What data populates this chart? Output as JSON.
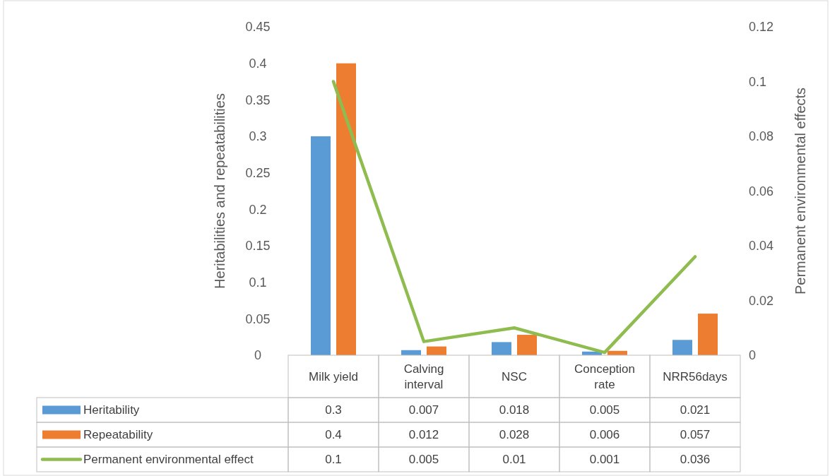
{
  "chart_data": {
    "type": "bar",
    "ylabel": "Heritabilities and repeatabilities",
    "y2label": "Permanent environmental effects",
    "categories": [
      "Milk yield",
      "Calving interval",
      "NSC",
      "Conception rate",
      "NRR56days"
    ],
    "series": [
      {
        "name": "Heritability",
        "color": "#5b9bd5",
        "values": [
          0.3,
          0.007,
          0.018,
          0.005,
          0.021
        ]
      },
      {
        "name": "Repeatability",
        "color": "#ed7d31",
        "values": [
          0.4,
          0.012,
          0.028,
          0.006,
          0.057
        ]
      },
      {
        "name": "Permanent environmental effect",
        "type": "line",
        "axis": "y2",
        "color": "#8fbc4f",
        "values": [
          0.1,
          0.005,
          0.01,
          0.001,
          0.036
        ]
      }
    ],
    "ylim": [
      0,
      0.45
    ],
    "yticks": [
      0,
      0.05,
      0.1,
      0.15,
      0.2,
      0.25,
      0.3,
      0.35,
      0.4,
      0.45
    ],
    "y2lim": [
      0,
      0.12
    ],
    "y2ticks": [
      0,
      0.02,
      0.04,
      0.06,
      0.08,
      0.1,
      0.12
    ],
    "data_labels": true,
    "legend": "bottom",
    "grid": false
  }
}
